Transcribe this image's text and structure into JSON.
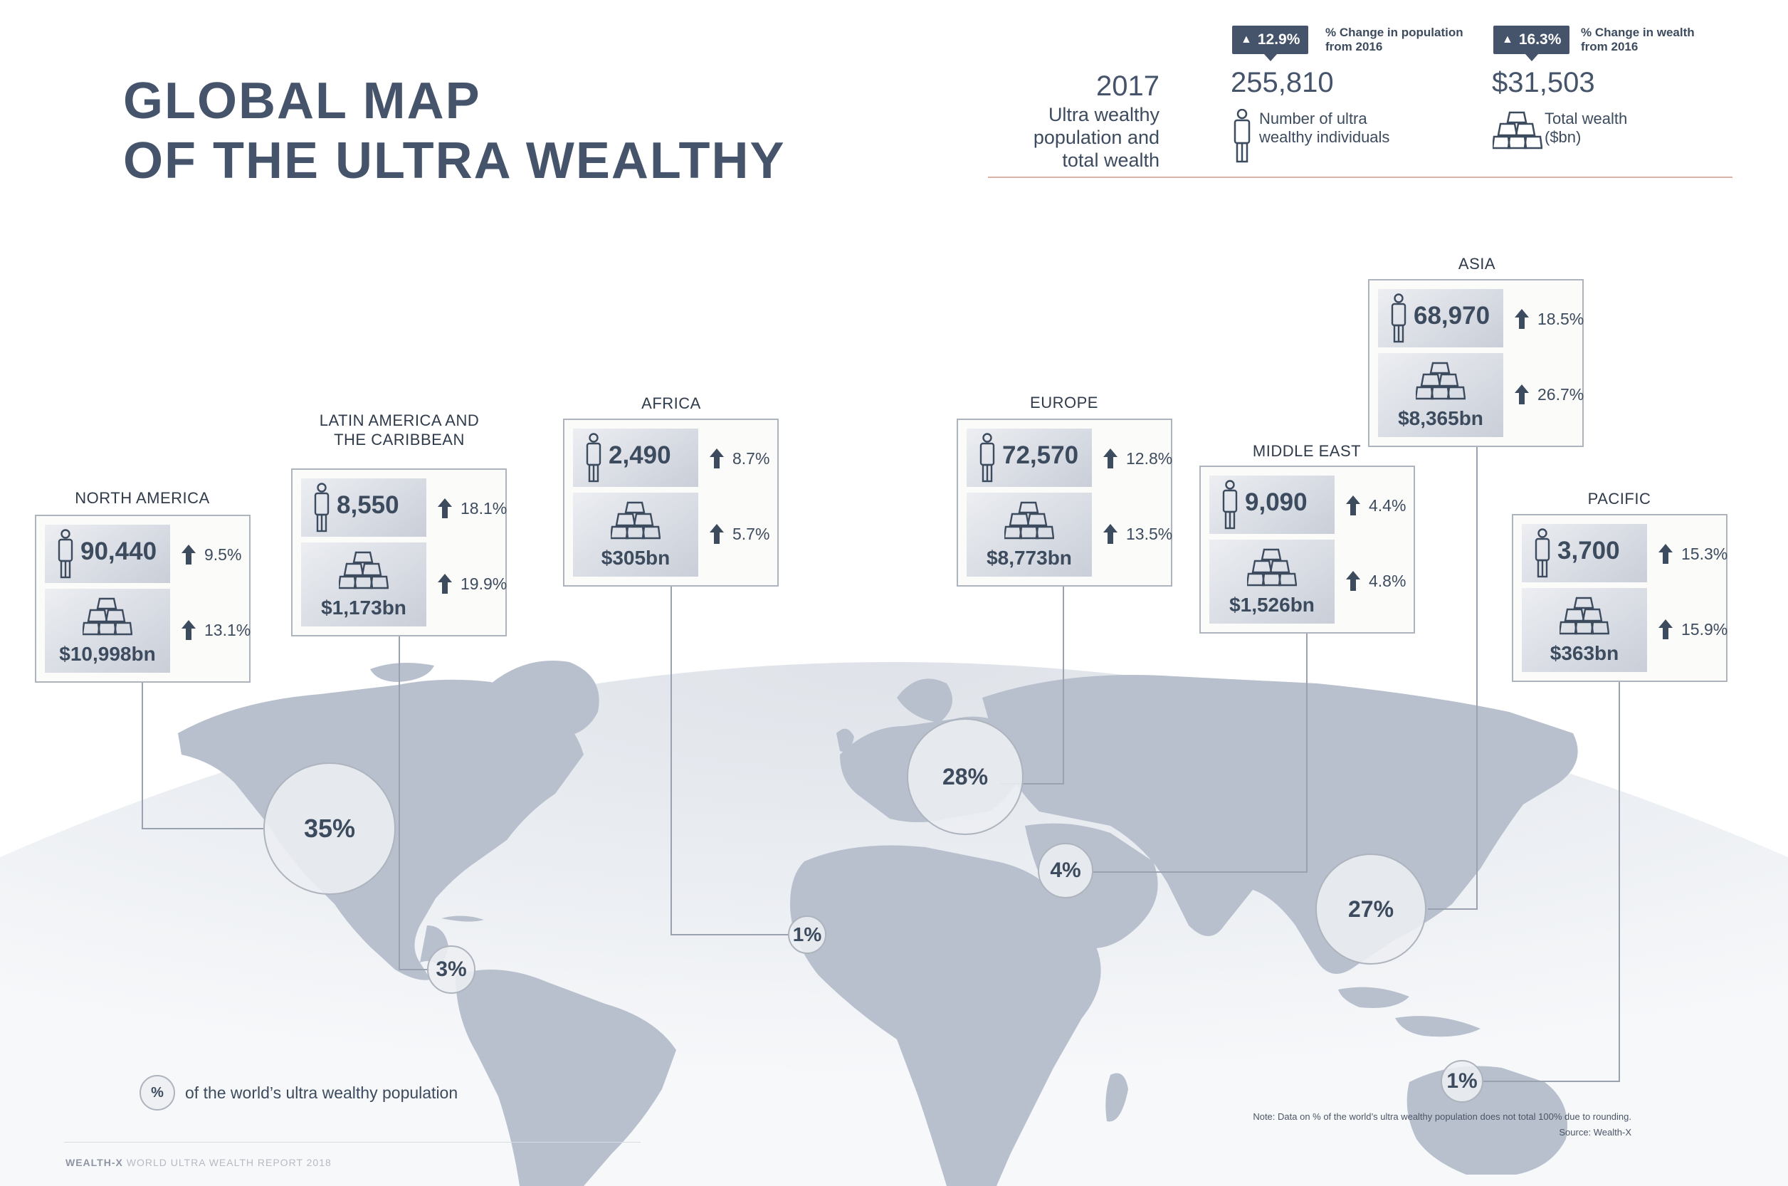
{
  "title": {
    "line1": "GLOBAL MAP",
    "line2": "OF THE ULTRA WEALTHY"
  },
  "summary": {
    "year": "2017",
    "description": [
      "Ultra wealthy",
      "population and",
      "total wealth"
    ],
    "population": {
      "change_badge": "12.9%",
      "change_note": [
        "% Change in population",
        "from 2016"
      ],
      "value": "255,810",
      "caption": [
        "Number of ultra",
        "wealthy individuals"
      ],
      "icon": "person-icon"
    },
    "wealth": {
      "change_badge": "16.3%",
      "change_note": [
        "% Change in wealth",
        "from 2016"
      ],
      "value": "$31,503",
      "caption": [
        "Total wealth",
        "($bn)"
      ],
      "icon": "gold-bars-icon"
    }
  },
  "regions": [
    {
      "id": "north-america",
      "name": "NORTH AMERICA",
      "population": "90,440",
      "population_change": "9.5%",
      "wealth": "$10,998bn",
      "wealth_change": "13.1%",
      "share": "35%"
    },
    {
      "id": "latin-america",
      "name": "LATIN AMERICA AND\nTHE CARIBBEAN",
      "population": "8,550",
      "population_change": "18.1%",
      "wealth": "$1,173bn",
      "wealth_change": "19.9%",
      "share": "3%"
    },
    {
      "id": "africa",
      "name": "AFRICA",
      "population": "2,490",
      "population_change": "8.7%",
      "wealth": "$305bn",
      "wealth_change": "5.7%",
      "share": "1%"
    },
    {
      "id": "europe",
      "name": "EUROPE",
      "population": "72,570",
      "population_change": "12.8%",
      "wealth": "$8,773bn",
      "wealth_change": "13.5%",
      "share": "28%"
    },
    {
      "id": "middle-east",
      "name": "MIDDLE EAST",
      "population": "9,090",
      "population_change": "4.4%",
      "wealth": "$1,526bn",
      "wealth_change": "4.8%",
      "share": "4%"
    },
    {
      "id": "asia",
      "name": "ASIA",
      "population": "68,970",
      "population_change": "18.5%",
      "wealth": "$8,365bn",
      "wealth_change": "26.7%",
      "share": "27%"
    },
    {
      "id": "pacific",
      "name": "PACIFIC",
      "population": "3,700",
      "population_change": "15.3%",
      "wealth": "$363bn",
      "wealth_change": "15.9%",
      "share": "1%"
    }
  ],
  "legend": {
    "symbol": "%",
    "text": "of the world’s ultra wealthy population"
  },
  "note": "Note: Data on % of the world’s ultra wealthy population does not total 100% due to rounding.",
  "source": "Source: Wealth-X",
  "footer": {
    "brand": "WEALTH-X",
    "text": "WORLD ULTRA WEALTH REPORT 2018"
  },
  "colors": {
    "primary": "#45546a",
    "land": "#b6bfcc",
    "globe": "#e6e9ee",
    "accent_rule": "#d9b4a6"
  }
}
